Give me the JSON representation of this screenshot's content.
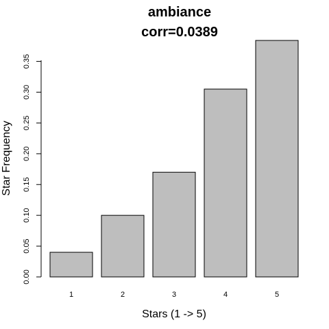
{
  "chart_data": {
    "type": "bar",
    "title": "ambiance",
    "subtitle": "corr=0.0389",
    "xlabel": "Stars (1 -> 5)",
    "ylabel": "Star Frequency",
    "categories": [
      "1",
      "2",
      "3",
      "4",
      "5"
    ],
    "values": [
      0.04,
      0.1,
      0.17,
      0.305,
      0.384
    ],
    "ylim": [
      0,
      0.384
    ],
    "yticks": [
      0.0,
      0.05,
      0.1,
      0.15,
      0.2,
      0.25,
      0.3,
      0.35
    ],
    "ytick_labels": [
      "0.00",
      "0.05",
      "0.10",
      "0.15",
      "0.20",
      "0.25",
      "0.30",
      "0.35"
    ],
    "grid": false,
    "legend": "none",
    "bar_color": "#bebebe",
    "border_color": "#000000"
  }
}
